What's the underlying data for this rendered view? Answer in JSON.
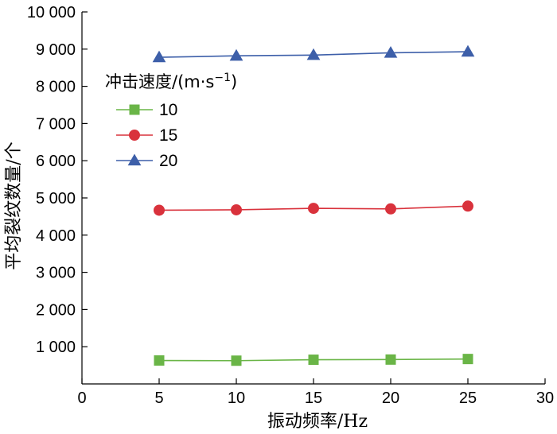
{
  "chart_data": {
    "type": "line",
    "xlabel": "振动频率/Hz",
    "ylabel": "平均裂纹数量/个",
    "xlim": [
      0,
      30
    ],
    "ylim": [
      0,
      10000
    ],
    "x_ticks": [
      0,
      5,
      10,
      15,
      20,
      25,
      30
    ],
    "x_tick_labels": [
      "0",
      "5",
      "10",
      "15",
      "20",
      "25",
      "30"
    ],
    "y_ticks": [
      1000,
      2000,
      3000,
      4000,
      5000,
      6000,
      7000,
      8000,
      9000,
      10000
    ],
    "y_tick_labels": [
      "1 000",
      "2 000",
      "3 000",
      "4 000",
      "5 000",
      "6 000",
      "7 000",
      "8 000",
      "9 000",
      "10 000"
    ],
    "grid": false,
    "legend_title": "冲击速度/(m·s",
    "legend_title_sup": "−1",
    "legend_title_end": ")",
    "legend_position": "upper-left",
    "x": [
      5,
      10,
      15,
      20,
      25
    ],
    "series": [
      {
        "name": "10",
        "values": [
          630,
          625,
          650,
          655,
          670
        ],
        "color": "#6ab547",
        "marker": "square"
      },
      {
        "name": "15",
        "values": [
          4670,
          4680,
          4720,
          4705,
          4780
        ],
        "color": "#d9323c",
        "marker": "circle"
      },
      {
        "name": "20",
        "values": [
          8780,
          8820,
          8840,
          8900,
          8930
        ],
        "color": "#3d5fa9",
        "marker": "triangle"
      }
    ]
  }
}
